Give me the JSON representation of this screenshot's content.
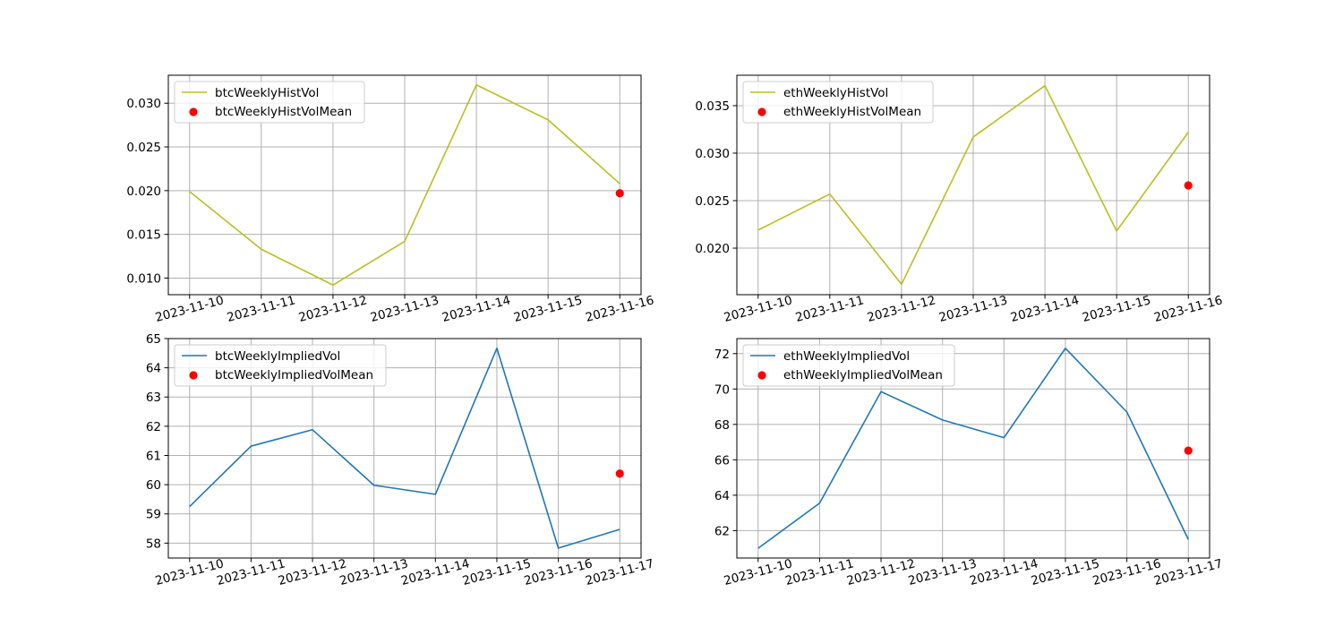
{
  "chart_data": [
    {
      "type": "line",
      "x": [
        "2023-11-10",
        "2023-11-11",
        "2023-11-12",
        "2023-11-13",
        "2023-11-14",
        "2023-11-15",
        "2023-11-16"
      ],
      "series": [
        {
          "name": "btcWeeklyHistVol",
          "kind": "line",
          "color": "#bcbd22",
          "values": [
            0.0199,
            0.0133,
            0.0092,
            0.0142,
            0.0321,
            0.0281,
            0.0208
          ]
        },
        {
          "name": "btcWeeklyHistVolMean",
          "kind": "scatter",
          "color": "#ff0000",
          "points": [
            {
              "x": "2023-11-16",
              "y": 0.0197
            }
          ]
        }
      ],
      "yticks": [
        0.01,
        0.015,
        0.02,
        0.025,
        0.03
      ],
      "ytick_labels": [
        "0.010",
        "0.015",
        "0.020",
        "0.025",
        "0.030"
      ],
      "ylim": [
        0.0081,
        0.0332
      ],
      "grid": true,
      "legend": "upper-left"
    },
    {
      "type": "line",
      "x": [
        "2023-11-10",
        "2023-11-11",
        "2023-11-12",
        "2023-11-13",
        "2023-11-14",
        "2023-11-15",
        "2023-11-16"
      ],
      "series": [
        {
          "name": "ethWeeklyHistVol",
          "kind": "line",
          "color": "#bcbd22",
          "values": [
            0.0219,
            0.0257,
            0.0162,
            0.0317,
            0.0371,
            0.0218,
            0.0322
          ]
        },
        {
          "name": "ethWeeklyHistVolMean",
          "kind": "scatter",
          "color": "#ff0000",
          "points": [
            {
              "x": "2023-11-16",
              "y": 0.0266
            }
          ]
        }
      ],
      "yticks": [
        0.02,
        0.025,
        0.03,
        0.035
      ],
      "ytick_labels": [
        "0.020",
        "0.025",
        "0.030",
        "0.035"
      ],
      "ylim": [
        0.0151,
        0.0382
      ],
      "grid": true,
      "legend": "upper-left"
    },
    {
      "type": "line",
      "x": [
        "2023-11-10",
        "2023-11-11",
        "2023-11-12",
        "2023-11-13",
        "2023-11-14",
        "2023-11-15",
        "2023-11-16",
        "2023-11-17"
      ],
      "series": [
        {
          "name": "btcWeeklyImpliedVol",
          "kind": "line",
          "color": "#1f77b4",
          "values": [
            59.25,
            61.32,
            61.88,
            59.98,
            59.67,
            64.67,
            57.83,
            58.47
          ]
        },
        {
          "name": "btcWeeklyImpliedVolMean",
          "kind": "scatter",
          "color": "#ff0000",
          "points": [
            {
              "x": "2023-11-17",
              "y": 60.38
            }
          ]
        }
      ],
      "yticks": [
        58,
        59,
        60,
        61,
        62,
        63,
        64,
        65
      ],
      "ytick_labels": [
        "58",
        "59",
        "60",
        "61",
        "62",
        "63",
        "64",
        "65"
      ],
      "ylim": [
        57.49,
        65.0
      ],
      "grid": true,
      "legend": "upper-left"
    },
    {
      "type": "line",
      "x": [
        "2023-11-10",
        "2023-11-11",
        "2023-11-12",
        "2023-11-13",
        "2023-11-14",
        "2023-11-15",
        "2023-11-16",
        "2023-11-17"
      ],
      "series": [
        {
          "name": "ethWeeklyImpliedVol",
          "kind": "line",
          "color": "#1f77b4",
          "values": [
            61.0,
            63.55,
            69.85,
            68.25,
            67.25,
            72.3,
            68.7,
            61.5
          ]
        },
        {
          "name": "ethWeeklyImpliedVolMean",
          "kind": "scatter",
          "color": "#ff0000",
          "points": [
            {
              "x": "2023-11-17",
              "y": 66.52
            }
          ]
        }
      ],
      "yticks": [
        62,
        64,
        66,
        68,
        70,
        72
      ],
      "ytick_labels": [
        "62",
        "64",
        "66",
        "68",
        "70",
        "72"
      ],
      "ylim": [
        60.45,
        72.85
      ],
      "grid": true,
      "legend": "upper-left"
    }
  ]
}
